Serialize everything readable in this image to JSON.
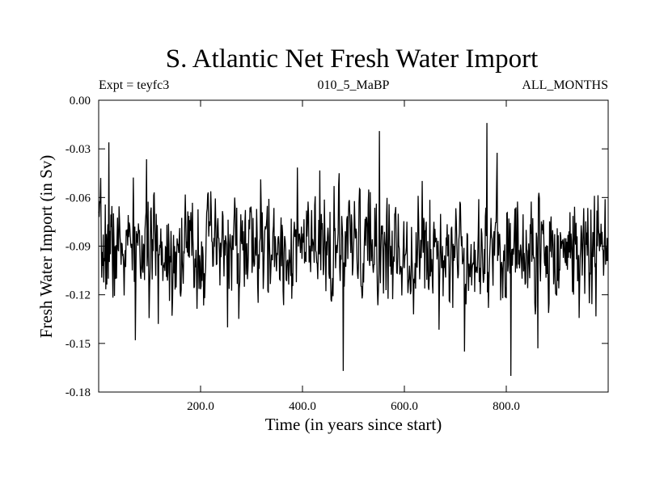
{
  "chart_data": {
    "type": "line",
    "title": "S. Atlantic Net Fresh Water Import",
    "subtitle_left": "Expt = teyfc3",
    "subtitle_center": "010_5_MaBP",
    "subtitle_right": "ALL_MONTHS",
    "xlabel": "Time (in years since start)",
    "ylabel": "Fresh Water Import (in Sv)",
    "xlim": [
      0,
      1000
    ],
    "ylim": [
      -0.18,
      0.0
    ],
    "xticks": [
      200,
      400,
      600,
      800
    ],
    "xtick_labels": [
      "200.0",
      "400.0",
      "600.0",
      "800.0"
    ],
    "yticks": [
      0.0,
      -0.03,
      -0.06,
      -0.09,
      -0.12,
      -0.15,
      -0.18
    ],
    "ytick_labels": [
      "0.00",
      "-0.03",
      "-0.06",
      "-0.09",
      "-0.12",
      "-0.15",
      "-0.18"
    ],
    "grid": false,
    "series": [
      {
        "name": "Fresh Water Import",
        "color": "#000000",
        "mean": -0.092,
        "std": 0.016,
        "n_points": 1000,
        "seed": 7,
        "extremes": [
          {
            "x": 20,
            "y": -0.026
          },
          {
            "x": 72,
            "y": -0.148
          },
          {
            "x": 480,
            "y": -0.167
          },
          {
            "x": 551,
            "y": -0.019
          },
          {
            "x": 718,
            "y": -0.155
          },
          {
            "x": 762,
            "y": -0.014
          },
          {
            "x": 809,
            "y": -0.17
          },
          {
            "x": 862,
            "y": -0.153
          },
          {
            "x": 994,
            "y": -0.061
          }
        ]
      }
    ]
  }
}
